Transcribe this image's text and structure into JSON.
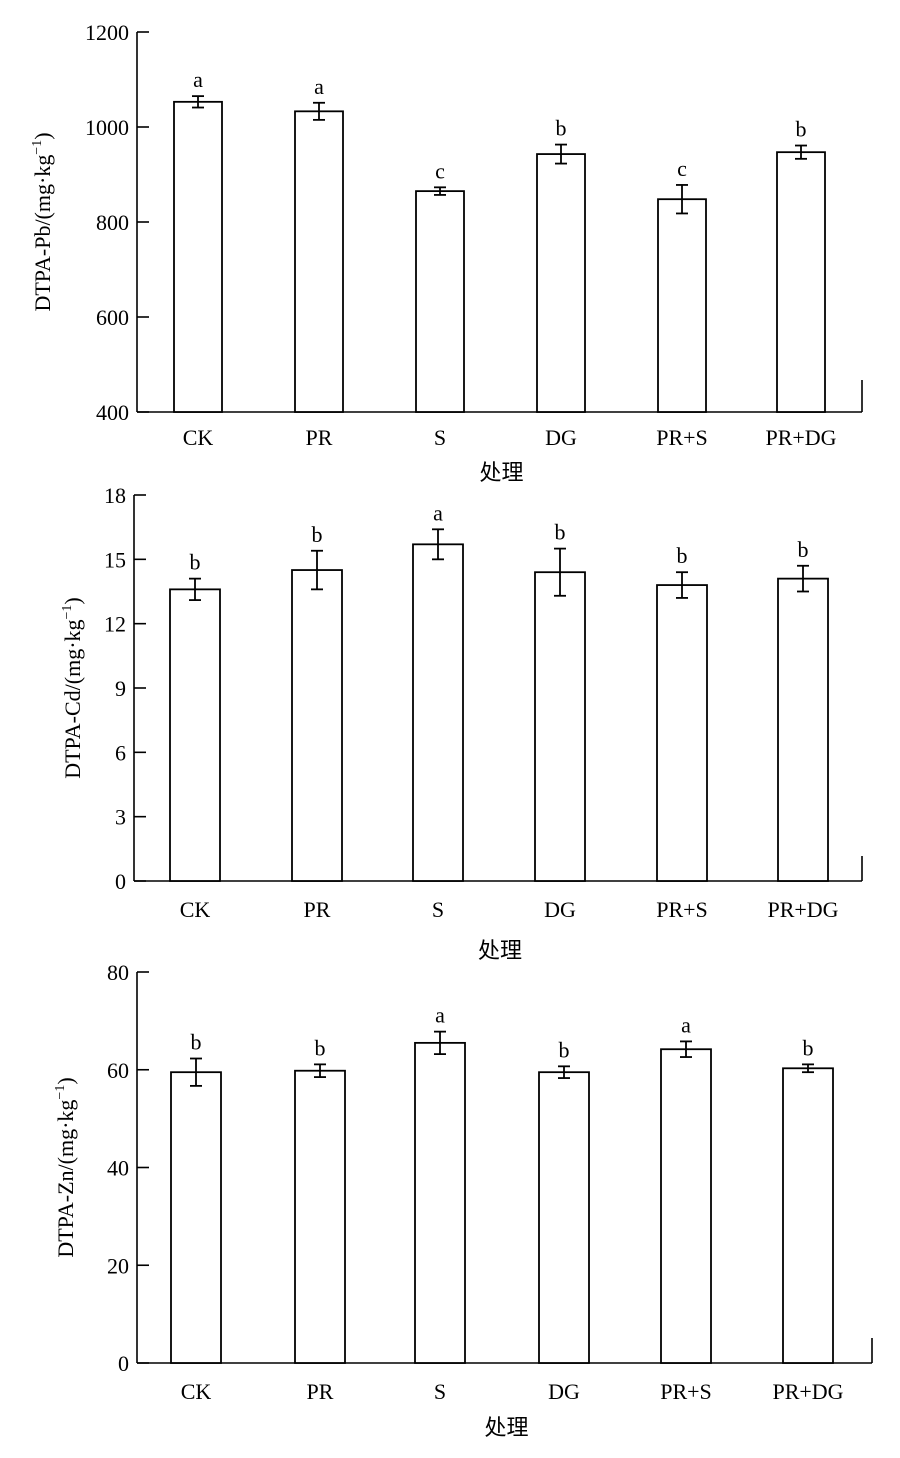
{
  "chart_data": [
    {
      "type": "bar",
      "title": "",
      "xlabel": "处理",
      "ylabel_main": "DTPA-Pb/(mg·kg",
      "ylabel_sup": "−1",
      "ylabel_tail": ")",
      "ylim": [
        400,
        1200
      ],
      "yticks": [
        400,
        600,
        800,
        1000,
        1200
      ],
      "categories": [
        "CK",
        "PR",
        "S",
        "DG",
        "PR+S",
        "PR+DG"
      ],
      "values": [
        1053,
        1033,
        865,
        943,
        848,
        947
      ],
      "errors": [
        12,
        18,
        8,
        20,
        30,
        14
      ],
      "significance": [
        "a",
        "a",
        "c",
        "b",
        "c",
        "b"
      ]
    },
    {
      "type": "bar",
      "title": "",
      "xlabel": "处理",
      "ylabel_main": "DTPA-Cd/(mg·kg",
      "ylabel_sup": "−1",
      "ylabel_tail": ")",
      "ylim": [
        0,
        18
      ],
      "yticks": [
        0,
        3,
        6,
        9,
        12,
        15,
        18
      ],
      "categories": [
        "CK",
        "PR",
        "S",
        "DG",
        "PR+S",
        "PR+DG"
      ],
      "values": [
        13.6,
        14.5,
        15.7,
        14.4,
        13.8,
        14.1
      ],
      "errors": [
        0.5,
        0.9,
        0.7,
        1.1,
        0.6,
        0.6
      ],
      "significance": [
        "b",
        "b",
        "a",
        "b",
        "b",
        "b"
      ]
    },
    {
      "type": "bar",
      "title": "",
      "xlabel": "处理",
      "ylabel_main": "DTPA-Zn/(mg·kg",
      "ylabel_sup": "−1",
      "ylabel_tail": ")",
      "ylim": [
        0,
        80
      ],
      "yticks": [
        0,
        20,
        40,
        60,
        80
      ],
      "categories": [
        "CK",
        "PR",
        "S",
        "DG",
        "PR+S",
        "PR+DG"
      ],
      "values": [
        59.5,
        59.8,
        65.5,
        59.5,
        64.2,
        60.3
      ],
      "errors": [
        2.8,
        1.3,
        2.3,
        1.2,
        1.6,
        0.8
      ],
      "significance": [
        "b",
        "b",
        "a",
        "b",
        "a",
        "b"
      ]
    }
  ]
}
